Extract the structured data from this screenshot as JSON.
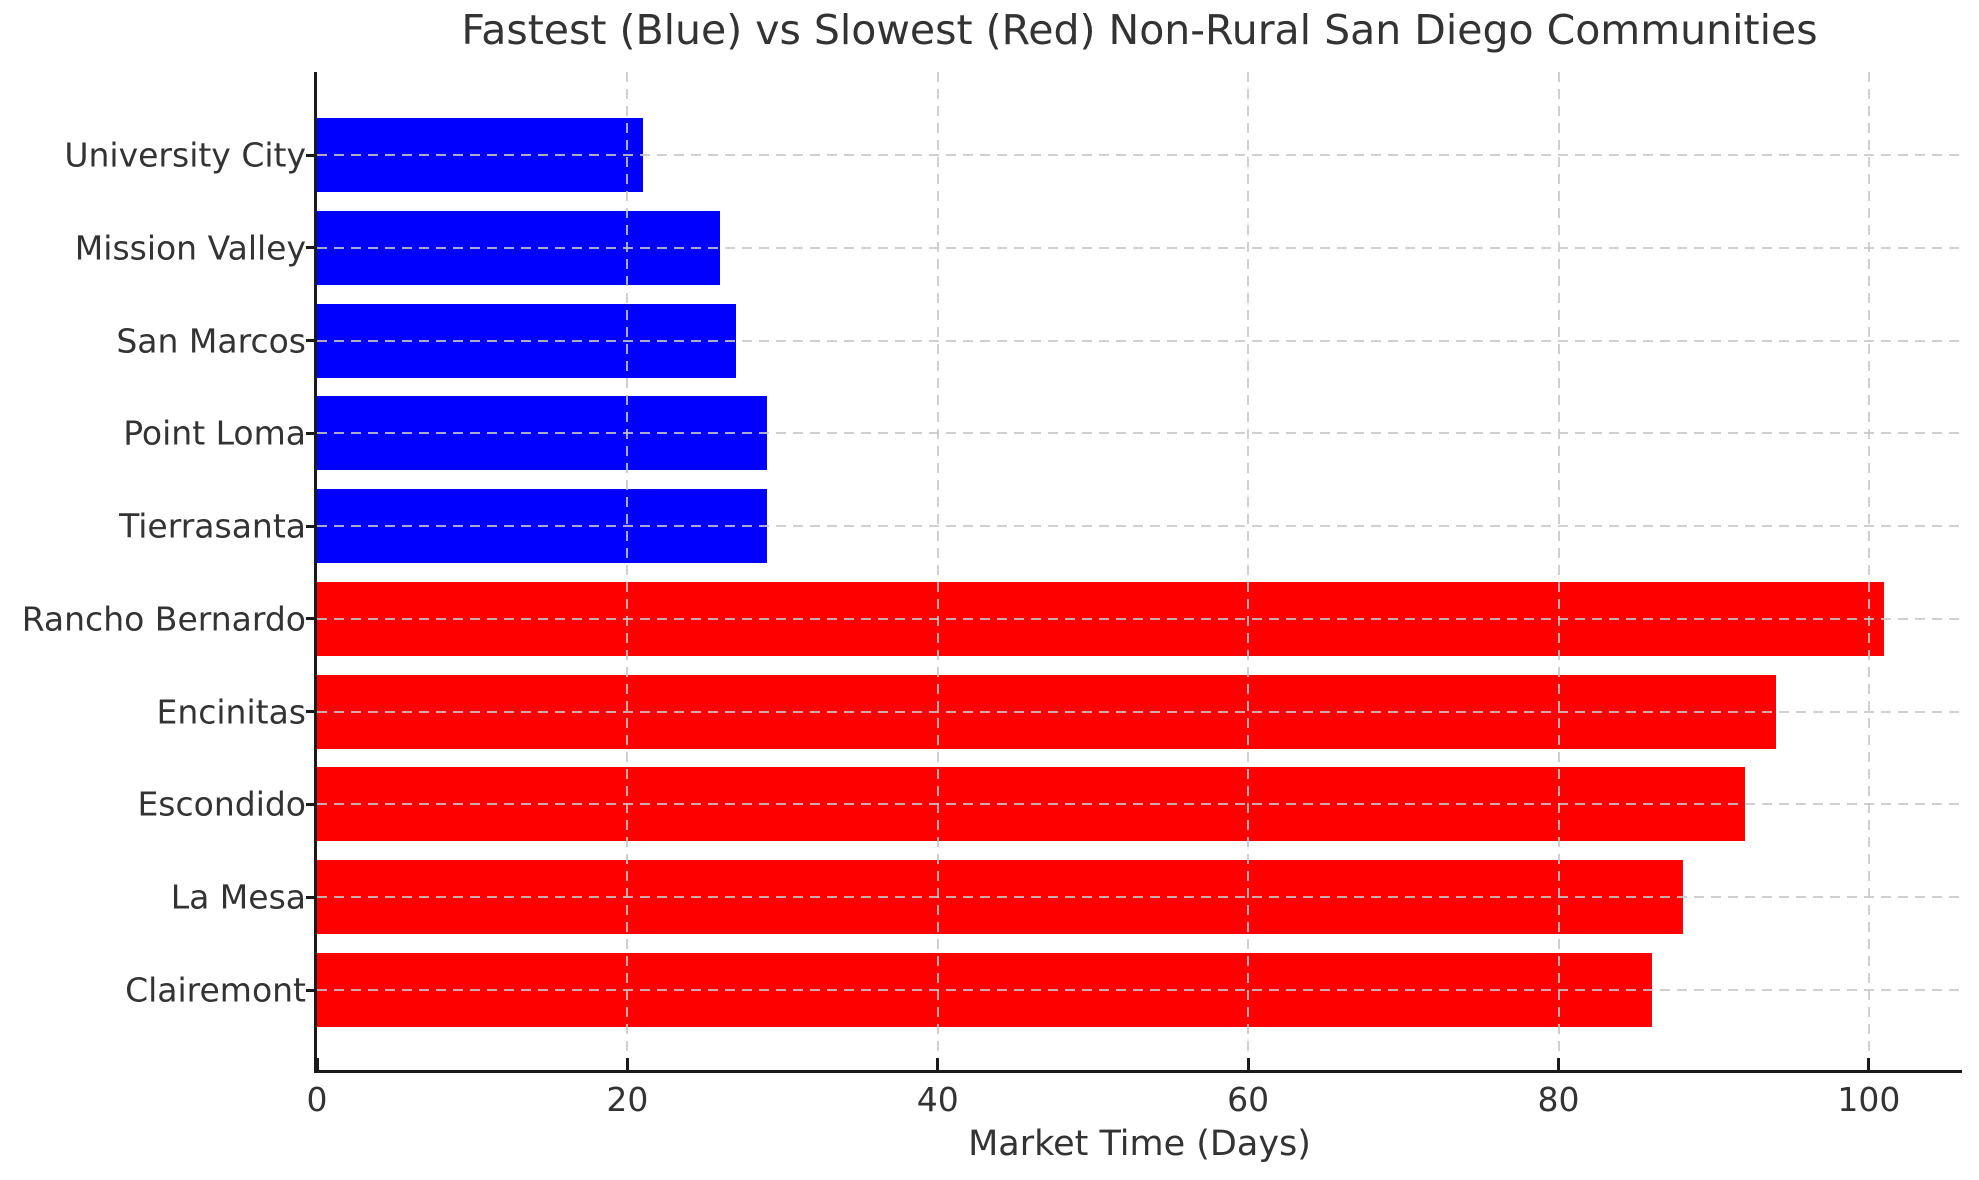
{
  "chart_data": {
    "type": "bar",
    "orientation": "horizontal",
    "title": "Fastest (Blue) vs Slowest (Red) Non-Rural San Diego Communities",
    "xlabel": "Market Time (Days)",
    "ylabel": "",
    "categories": [
      "University City",
      "Mission Valley",
      "San Marcos",
      "Point Loma",
      "Tierrasanta",
      "Rancho Bernardo",
      "Encinitas",
      "Escondido",
      "La Mesa",
      "Clairemont"
    ],
    "values": [
      21,
      26,
      27,
      29,
      29,
      101,
      94,
      92,
      88,
      86
    ],
    "bar_colors": [
      "#0000ff",
      "#0000ff",
      "#0000ff",
      "#0000ff",
      "#0000ff",
      "#ff0000",
      "#ff0000",
      "#ff0000",
      "#ff0000",
      "#ff0000"
    ],
    "groups": [
      {
        "name": "Fastest",
        "color": "#0000ff"
      },
      {
        "name": "Slowest",
        "color": "#ff0000"
      }
    ],
    "xticks": [
      0,
      20,
      40,
      60,
      80,
      100
    ],
    "xtick_labels": [
      "0",
      "20",
      "40",
      "60",
      "80",
      "100"
    ],
    "xlim": [
      0,
      106
    ],
    "grid": "dashed",
    "legend": "none"
  },
  "colors": {
    "fast_bar": "#0000ff",
    "slow_bar": "#ff0000",
    "grid": "#c8c8c8",
    "spine": "#1a1a1a",
    "text": "#333333",
    "background": "#ffffff"
  }
}
